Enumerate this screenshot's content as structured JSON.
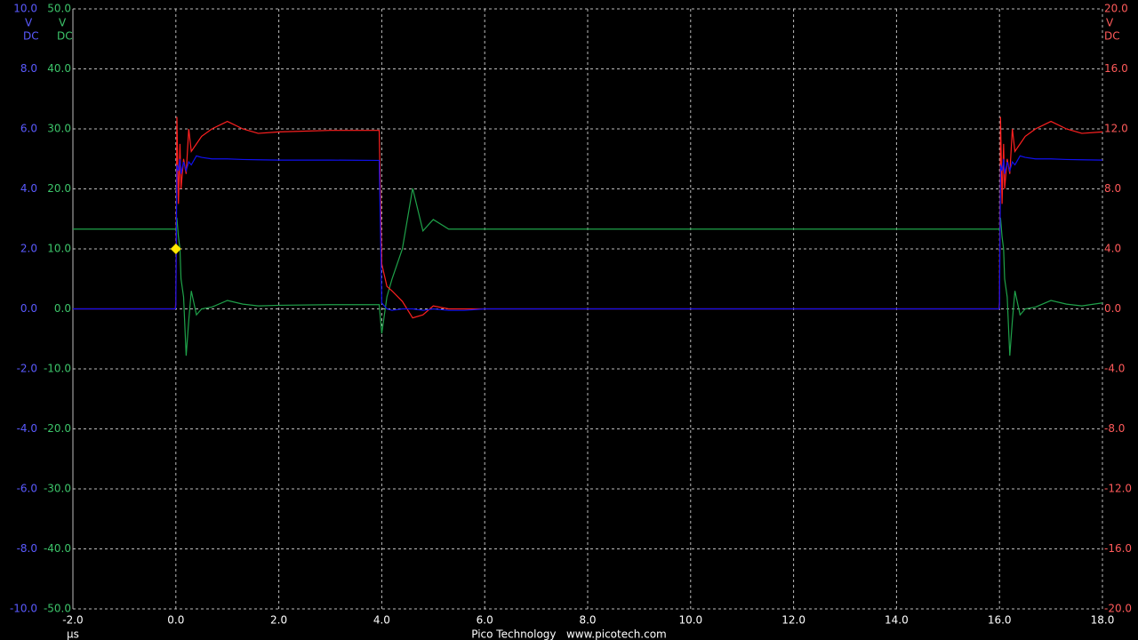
{
  "chart_data": {
    "type": "line",
    "x_unit": "µs",
    "footer": "Pico Technology   www.picotech.com",
    "y_unit": "V",
    "y_coupling": "DC",
    "y3_unit": "V",
    "y3_coupling": "DC",
    "y2_unit": "V",
    "y2_coupling": "DC",
    "xlim": [
      -2,
      18
    ],
    "xticks": [
      {
        "value": -2,
        "label": "-2.0"
      },
      {
        "value": 0,
        "label": "0.0"
      },
      {
        "value": 2,
        "label": "2.0"
      },
      {
        "value": 4,
        "label": "4.0"
      },
      {
        "value": 6,
        "label": "6.0"
      },
      {
        "value": 8,
        "label": "8.0"
      },
      {
        "value": 10,
        "label": "10.0"
      },
      {
        "value": 12,
        "label": "12.0"
      },
      {
        "value": 14,
        "label": "14.0"
      },
      {
        "value": 16,
        "label": "16.0"
      },
      {
        "value": 18,
        "label": "18.0"
      }
    ],
    "ylim": [
      -10,
      10
    ],
    "yticks": [
      {
        "value": 10,
        "label": "10.0"
      },
      {
        "value": 8,
        "label": "8.0"
      },
      {
        "value": 6,
        "label": "6.0"
      },
      {
        "value": 4,
        "label": "4.0"
      },
      {
        "value": 2,
        "label": "2.0"
      },
      {
        "value": 0,
        "label": "0.0"
      },
      {
        "value": -2,
        "label": "-2.0"
      },
      {
        "value": -4,
        "label": "-4.0"
      },
      {
        "value": -6,
        "label": "-6.0"
      },
      {
        "value": -8,
        "label": "-8.0"
      },
      {
        "value": -10,
        "label": "-10.0"
      }
    ],
    "y3lim": [
      -50,
      50
    ],
    "y3ticks": [
      {
        "value": 50,
        "label": "50.0"
      },
      {
        "value": 40,
        "label": "40.0"
      },
      {
        "value": 30,
        "label": "30.0"
      },
      {
        "value": 20,
        "label": "20.0"
      },
      {
        "value": 10,
        "label": "10.0"
      },
      {
        "value": 0,
        "label": "0.0"
      },
      {
        "value": -10,
        "label": "-10.0"
      },
      {
        "value": -20,
        "label": "-20.0"
      },
      {
        "value": -30,
        "label": "-30.0"
      },
      {
        "value": -40,
        "label": "-40.0"
      },
      {
        "value": -50,
        "label": "-50.0"
      }
    ],
    "y2lim": [
      -20,
      20
    ],
    "y2ticks": [
      {
        "value": 20,
        "label": "20.0"
      },
      {
        "value": 16,
        "label": "16.0"
      },
      {
        "value": 12,
        "label": "12.0"
      },
      {
        "value": 8,
        "label": "8.0"
      },
      {
        "value": 4,
        "label": "4.0"
      },
      {
        "value": 0,
        "label": "0.0"
      },
      {
        "value": -4,
        "label": "-4.0"
      },
      {
        "value": -8,
        "label": "-8.0"
      },
      {
        "value": -12,
        "label": "-12.0"
      },
      {
        "value": -16,
        "label": "-16.0"
      },
      {
        "value": -20,
        "label": "-20.0"
      }
    ],
    "grid": true,
    "x": [
      -2,
      -0.01,
      0,
      0.02,
      0.05,
      0.08,
      0.1,
      0.15,
      0.2,
      0.25,
      0.3,
      0.4,
      0.5,
      0.7,
      1.0,
      1.3,
      1.6,
      2.0,
      3.0,
      3.9,
      3.95,
      4.0,
      4.1,
      4.2,
      4.4,
      4.6,
      4.8,
      5.0,
      5.3,
      5.6,
      6.0,
      8.0,
      15.99,
      16.0,
      16.02,
      16.05,
      16.08,
      16.1,
      16.15,
      16.2,
      16.25,
      16.3,
      16.4,
      16.5,
      16.7,
      17.0,
      17.3,
      17.6,
      18.0
    ],
    "series": [
      {
        "axis": "y3",
        "color": "#1fa24a",
        "label_color": "#3cc46a",
        "values": [
          13.3,
          13.3,
          13,
          15.2,
          12,
          10,
          5,
          2,
          -7.8,
          -2,
          3,
          -1,
          0,
          0.3,
          1.4,
          0.8,
          0.5,
          0.6,
          0.7,
          0.7,
          0.7,
          -4.1,
          2,
          5,
          10,
          20.1,
          13,
          14.9,
          13.3,
          13.3,
          13.3,
          13.3,
          13.3,
          13,
          15.2,
          12,
          10,
          5,
          2,
          -7.8,
          -2,
          3,
          -1,
          0,
          0.3,
          1.4,
          0.8,
          0.5,
          1.0
        ]
      },
      {
        "axis": "y2",
        "color": "#ff2020",
        "label_color": "#ff5a5a",
        "values": [
          0,
          0,
          0.5,
          12.8,
          7,
          11,
          8,
          10,
          9,
          12,
          10.5,
          11,
          11.5,
          12,
          12.5,
          12,
          11.7,
          11.8,
          11.9,
          11.9,
          11.9,
          3,
          1.5,
          1.2,
          0.5,
          -0.6,
          -0.4,
          0.2,
          0,
          0,
          0,
          0,
          0,
          0.5,
          12.8,
          7,
          11,
          8,
          10,
          9,
          12,
          10.5,
          11,
          11.5,
          12,
          12.5,
          12,
          11.7,
          11.8
        ]
      },
      {
        "axis": "y",
        "color": "#1010f0",
        "label_color": "#5a5aff",
        "values": [
          0,
          0,
          0.1,
          4.8,
          4.6,
          5.0,
          4.5,
          4.9,
          4.6,
          4.9,
          4.8,
          5.1,
          5.05,
          5.0,
          5.0,
          4.98,
          4.97,
          4.96,
          4.96,
          4.95,
          4.95,
          0.2,
          0.0,
          -0.05,
          0.0,
          0.0,
          -0.05,
          0.0,
          -0.05,
          -0.05,
          0.0,
          0.0,
          0.0,
          0.1,
          4.8,
          4.6,
          5.0,
          4.5,
          4.9,
          4.6,
          4.9,
          4.8,
          5.1,
          5.05,
          5.0,
          5.0,
          4.98,
          4.97,
          4.96
        ]
      }
    ],
    "trigger": {
      "x": 0,
      "y": 2.0,
      "color": "#ffe600"
    }
  }
}
